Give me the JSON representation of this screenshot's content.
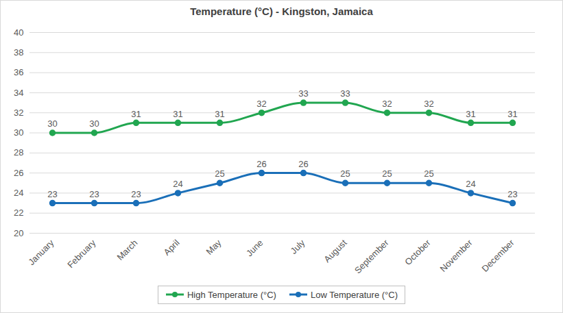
{
  "chart_data": {
    "type": "line",
    "title": "Temperature (°C) - Kingston, Jamaica",
    "categories": [
      "January",
      "February",
      "March",
      "April",
      "May",
      "June",
      "July",
      "August",
      "September",
      "October",
      "November",
      "December"
    ],
    "series": [
      {
        "name": "High Temperature (°C)",
        "color": "#21a650",
        "marker": "circle",
        "line_style": "solid",
        "values": [
          30,
          30,
          31,
          31,
          31,
          32,
          33,
          33,
          32,
          32,
          31,
          31
        ]
      },
      {
        "name": "Low Temperature (°C)",
        "color": "#1a6fb8",
        "marker": "circle",
        "line_style": "solid",
        "values": [
          23,
          23,
          23,
          24,
          25,
          26,
          26,
          25,
          25,
          25,
          24,
          23
        ]
      }
    ],
    "ylim": [
      20,
      40
    ],
    "yticks": [
      20,
      22,
      24,
      26,
      28,
      30,
      32,
      34,
      36,
      38,
      40
    ],
    "grid": true,
    "legend": "bottom",
    "data_labels": true
  }
}
